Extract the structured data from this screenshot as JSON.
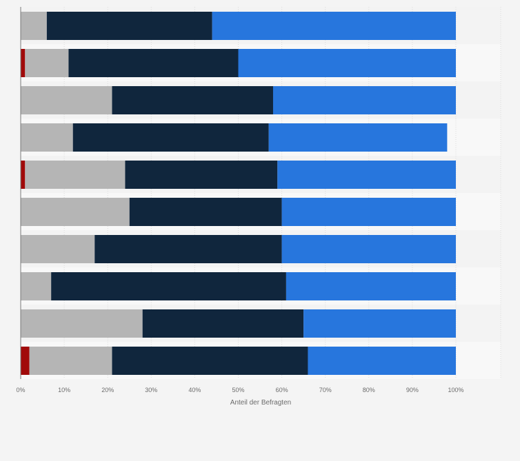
{
  "chart_data": {
    "type": "bar",
    "orientation": "horizontal",
    "stacked": true,
    "xlabel": "Anteil der Befragten",
    "xlim": [
      0,
      100
    ],
    "x_ticks": [
      "0%",
      "10%",
      "20%",
      "30%",
      "40%",
      "50%",
      "60%",
      "70%",
      "80%",
      "90%",
      "100%"
    ],
    "category_count": 10,
    "grid": true,
    "legend": "none",
    "series": [
      {
        "color": "#a10a0a",
        "values": [
          0,
          1,
          0,
          0,
          1,
          0,
          0,
          0,
          0,
          2
        ]
      },
      {
        "color": "#b5b5b5",
        "values": [
          6,
          10,
          21,
          12,
          23,
          25,
          17,
          7,
          28,
          19
        ]
      },
      {
        "color": "#10263d",
        "values": [
          38,
          39,
          37,
          45,
          35,
          35,
          43,
          54,
          37,
          45
        ]
      },
      {
        "color": "#2776dd",
        "values": [
          56,
          50,
          42,
          41,
          41,
          40,
          40,
          39,
          35,
          34
        ]
      }
    ]
  }
}
